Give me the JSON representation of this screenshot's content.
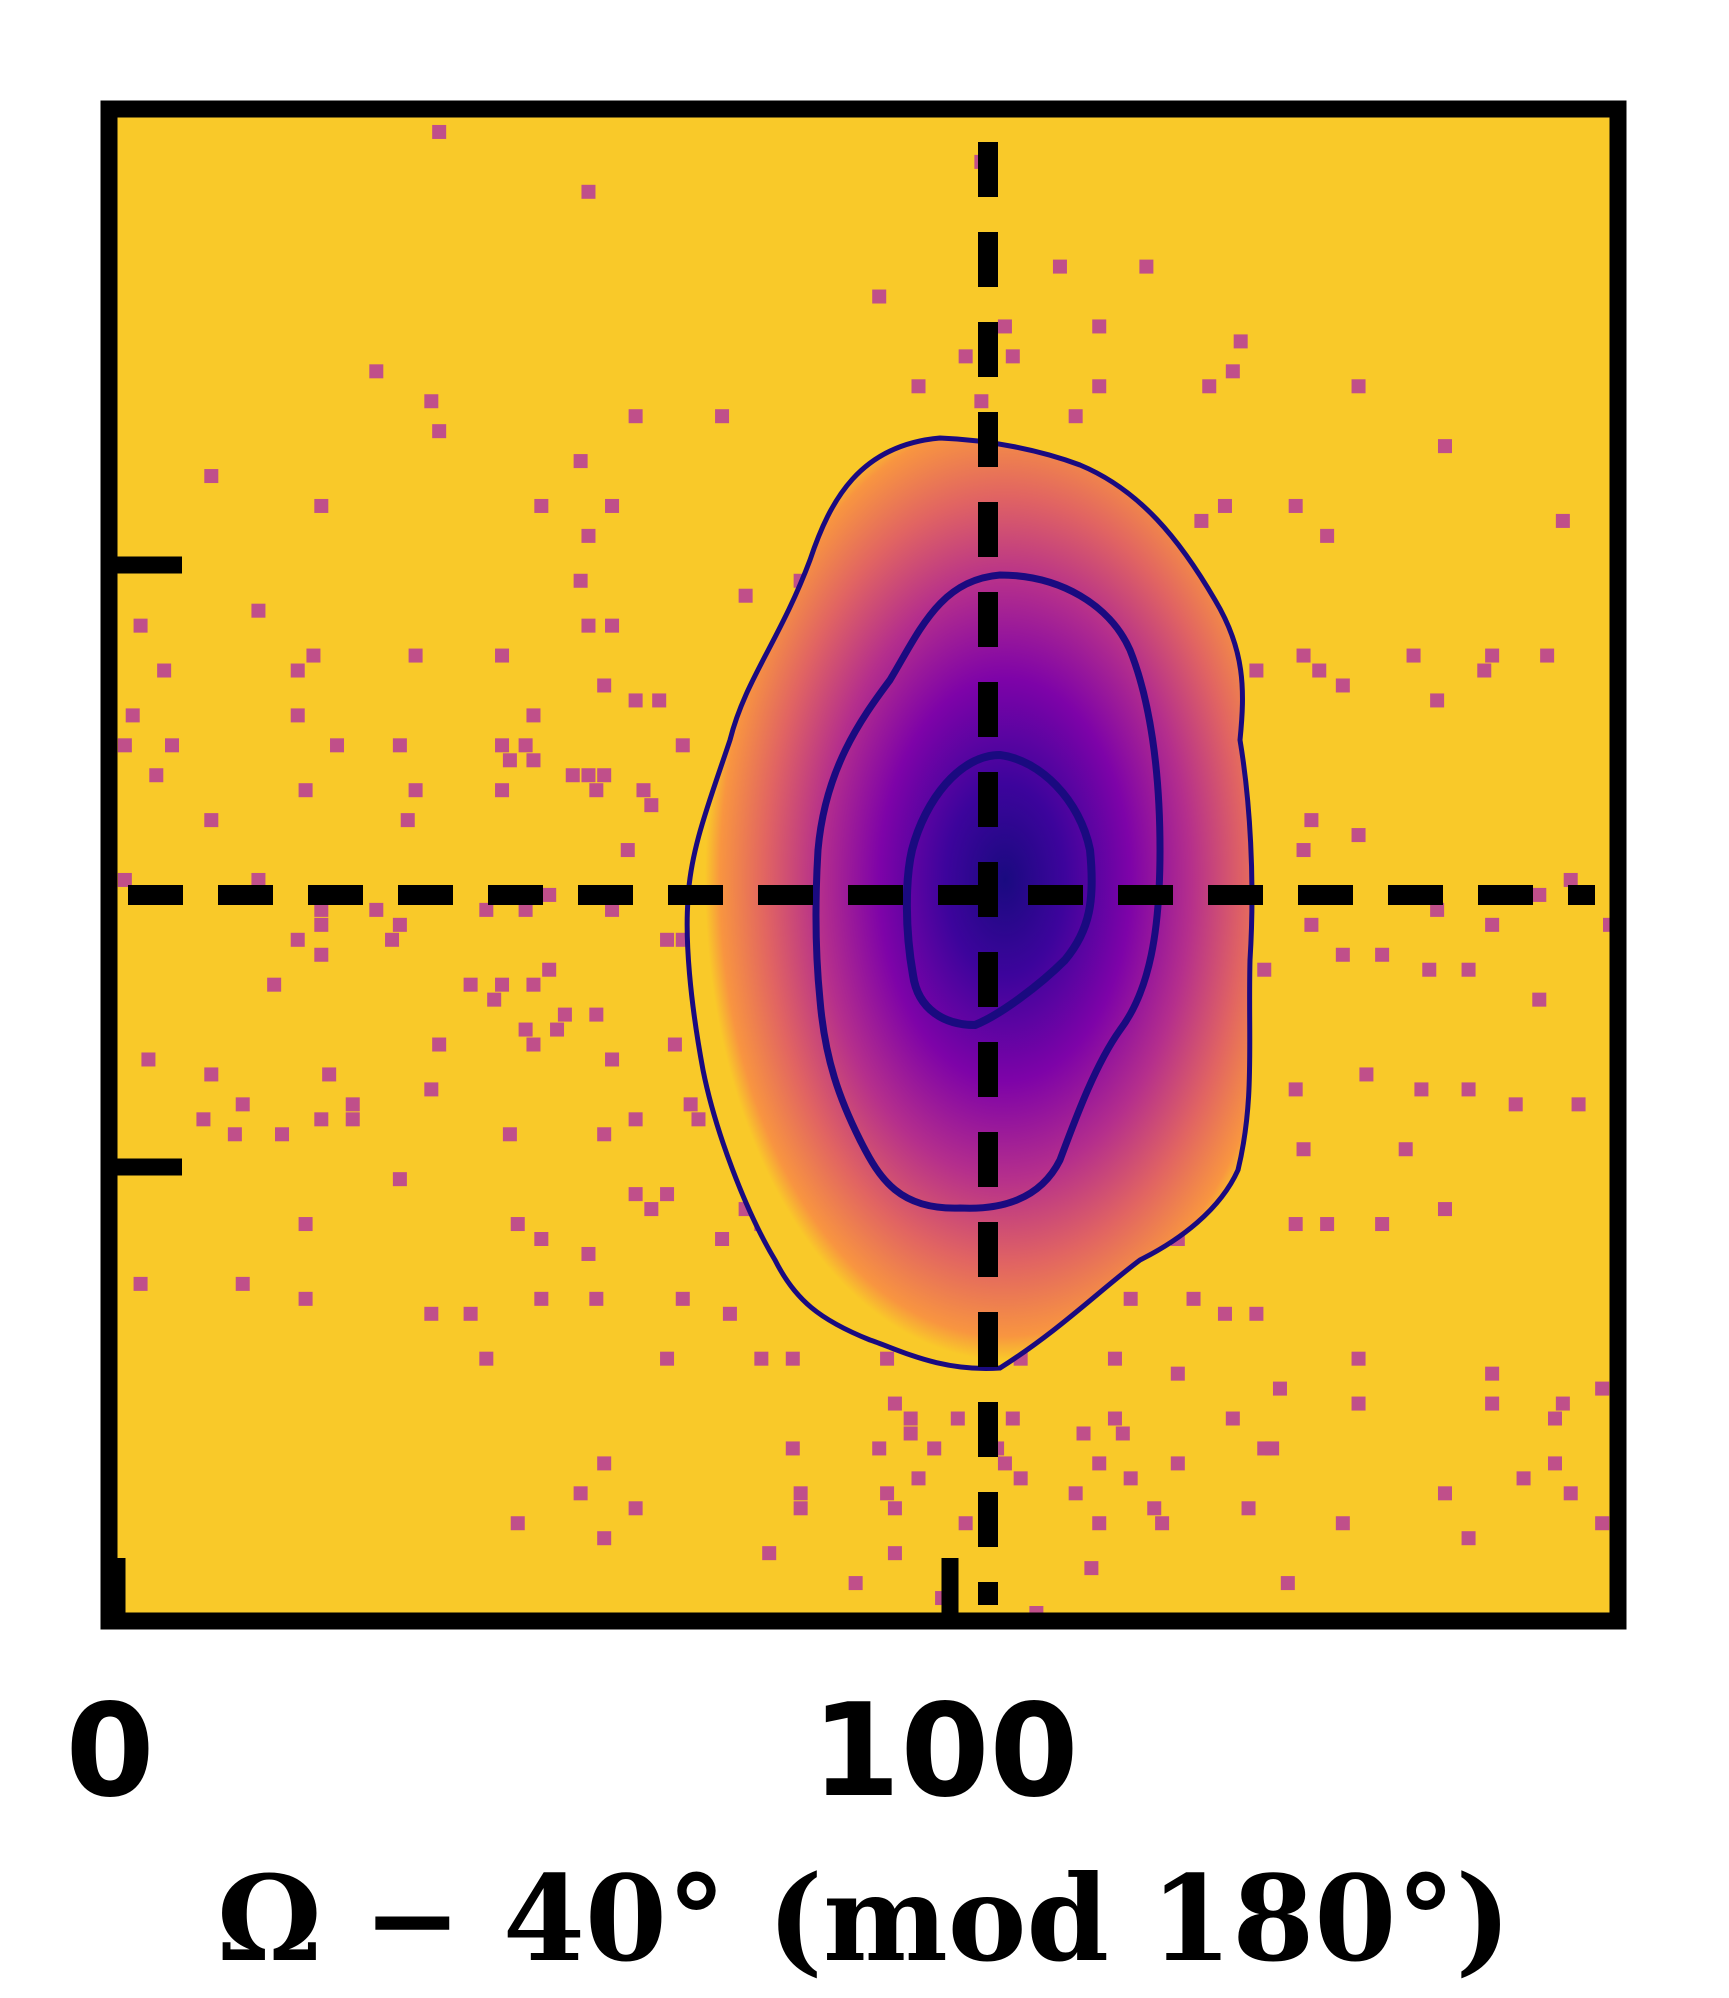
{
  "chart_data": {
    "type": "heatmap",
    "title": "",
    "xlabel": "Ω − 40°  (mod 180°)",
    "ylabel": "",
    "xlim": [
      0,
      180
    ],
    "ylim": [
      0,
      100
    ],
    "x_ticks": [
      {
        "value": 0,
        "label": "0"
      },
      {
        "value": 100,
        "label": "100"
      }
    ],
    "y_ticks": [
      {
        "value": 30,
        "label": ""
      },
      {
        "value": 70,
        "label": ""
      }
    ],
    "reference_lines": {
      "vertical_x": 104,
      "horizontal_y": 48,
      "style": "dashed"
    },
    "density": {
      "center": [
        105,
        48
      ],
      "colormap": "plasma",
      "contour_levels": 3,
      "contour_color": "#1a0a80",
      "background_color": "#f9c929"
    },
    "scatter_color": "#c04f8a",
    "scatter_points": [
      [
        41,
        99
      ],
      [
        60,
        95
      ],
      [
        110,
        97
      ],
      [
        120,
        90
      ],
      [
        97,
        88
      ],
      [
        113,
        86
      ],
      [
        131,
        90
      ],
      [
        114,
        84
      ],
      [
        125,
        86
      ],
      [
        108,
        84
      ],
      [
        143,
        85
      ],
      [
        142,
        83
      ],
      [
        33,
        83
      ],
      [
        40,
        81
      ],
      [
        41,
        79
      ],
      [
        59,
        77
      ],
      [
        66,
        80
      ],
      [
        77,
        80
      ],
      [
        102,
        82
      ],
      [
        110,
        81
      ],
      [
        122,
        80
      ],
      [
        125,
        82
      ],
      [
        139,
        82
      ],
      [
        158,
        82
      ],
      [
        169,
        78
      ],
      [
        12,
        76
      ],
      [
        26,
        74
      ],
      [
        54,
        74
      ],
      [
        60,
        72
      ],
      [
        63,
        74
      ],
      [
        138,
        73
      ],
      [
        141,
        74
      ],
      [
        150,
        74
      ],
      [
        154,
        72
      ],
      [
        184,
        73
      ],
      [
        18,
        67
      ],
      [
        3,
        66
      ],
      [
        6,
        63
      ],
      [
        23,
        63
      ],
      [
        25,
        64
      ],
      [
        38,
        64
      ],
      [
        49,
        64
      ],
      [
        59,
        69
      ],
      [
        60,
        66
      ],
      [
        63,
        66
      ],
      [
        80,
        68
      ],
      [
        88,
        67
      ],
      [
        87,
        69
      ],
      [
        2,
        60
      ],
      [
        1,
        58
      ],
      [
        7,
        58
      ],
      [
        23,
        60
      ],
      [
        28,
        58
      ],
      [
        36,
        58
      ],
      [
        52,
        58
      ],
      [
        53,
        60
      ],
      [
        62,
        62
      ],
      [
        66,
        61
      ],
      [
        69,
        61
      ],
      [
        72,
        58
      ],
      [
        82,
        61
      ],
      [
        137,
        61
      ],
      [
        145,
        63
      ],
      [
        151,
        64
      ],
      [
        153,
        63
      ],
      [
        156,
        62
      ],
      [
        165,
        64
      ],
      [
        168,
        61
      ],
      [
        174,
        63
      ],
      [
        175,
        64
      ],
      [
        182,
        64
      ],
      [
        5,
        56
      ],
      [
        24,
        55
      ],
      [
        37,
        53
      ],
      [
        38,
        55
      ],
      [
        49,
        55
      ],
      [
        50,
        57
      ],
      [
        53,
        57
      ],
      [
        58,
        56
      ],
      [
        60,
        56
      ],
      [
        62,
        56
      ],
      [
        12,
        53
      ],
      [
        49,
        58
      ],
      [
        61,
        55
      ],
      [
        67,
        55
      ],
      [
        68,
        54
      ],
      [
        65,
        51
      ],
      [
        98,
        52
      ],
      [
        130,
        55
      ],
      [
        133,
        55
      ],
      [
        138,
        53
      ],
      [
        151,
        51
      ],
      [
        152,
        53
      ],
      [
        158,
        52
      ],
      [
        1,
        49
      ],
      [
        16,
        48
      ],
      [
        18,
        49
      ],
      [
        26,
        47
      ],
      [
        23,
        45
      ],
      [
        26,
        46
      ],
      [
        33,
        47
      ],
      [
        36,
        46
      ],
      [
        47,
        47
      ],
      [
        52,
        47
      ],
      [
        55,
        48
      ],
      [
        63,
        47
      ],
      [
        70,
        45
      ],
      [
        122,
        48
      ],
      [
        134,
        47
      ],
      [
        137,
        47
      ],
      [
        152,
        46
      ],
      [
        168,
        47
      ],
      [
        175,
        46
      ],
      [
        181,
        48
      ],
      [
        185,
        49
      ],
      [
        190,
        46
      ],
      [
        20,
        42
      ],
      [
        26,
        44
      ],
      [
        35,
        45
      ],
      [
        45,
        42
      ],
      [
        49,
        42
      ],
      [
        48,
        41
      ],
      [
        53,
        42
      ],
      [
        55,
        43
      ],
      [
        57,
        40
      ],
      [
        61,
        40
      ],
      [
        72,
        45
      ],
      [
        116,
        42
      ],
      [
        127,
        41
      ],
      [
        133,
        40
      ],
      [
        146,
        43
      ],
      [
        156,
        44
      ],
      [
        161,
        44
      ],
      [
        167,
        43
      ],
      [
        172,
        43
      ],
      [
        181,
        41
      ],
      [
        4,
        37
      ],
      [
        12,
        36
      ],
      [
        16,
        34
      ],
      [
        27,
        36
      ],
      [
        30,
        34
      ],
      [
        40,
        35
      ],
      [
        41,
        38
      ],
      [
        52,
        39
      ],
      [
        53,
        38
      ],
      [
        56,
        39
      ],
      [
        63,
        37
      ],
      [
        71,
        38
      ],
      [
        78,
        38
      ],
      [
        119,
        37
      ],
      [
        125,
        37
      ],
      [
        130,
        37
      ],
      [
        138,
        37
      ],
      [
        150,
        35
      ],
      [
        159,
        36
      ],
      [
        166,
        35
      ],
      [
        172,
        35
      ],
      [
        178,
        34
      ],
      [
        186,
        34
      ],
      [
        11,
        33
      ],
      [
        15,
        32
      ],
      [
        21,
        32
      ],
      [
        26,
        33
      ],
      [
        30,
        33
      ],
      [
        50,
        32
      ],
      [
        62,
        32
      ],
      [
        66,
        33
      ],
      [
        73,
        34
      ],
      [
        74,
        33
      ],
      [
        36,
        29
      ],
      [
        66,
        28
      ],
      [
        68,
        27
      ],
      [
        70,
        28
      ],
      [
        80,
        27
      ],
      [
        84,
        29
      ],
      [
        86,
        28
      ],
      [
        126,
        29
      ],
      [
        135,
        28
      ],
      [
        139,
        30
      ],
      [
        151,
        31
      ],
      [
        164,
        31
      ],
      [
        24,
        26
      ],
      [
        51,
        26
      ],
      [
        54,
        25
      ],
      [
        60,
        24
      ],
      [
        77,
        25
      ],
      [
        82,
        26
      ],
      [
        88,
        26
      ],
      [
        122,
        26
      ],
      [
        135,
        25
      ],
      [
        150,
        26
      ],
      [
        154,
        26
      ],
      [
        161,
        26
      ],
      [
        169,
        27
      ],
      [
        3,
        22
      ],
      [
        16,
        22
      ],
      [
        24,
        21
      ],
      [
        40,
        20
      ],
      [
        45,
        20
      ],
      [
        54,
        21
      ],
      [
        61,
        21
      ],
      [
        72,
        21
      ],
      [
        78,
        20
      ],
      [
        99,
        19
      ],
      [
        115,
        19
      ],
      [
        129,
        21
      ],
      [
        137,
        21
      ],
      [
        141,
        20
      ],
      [
        145,
        20
      ],
      [
        47,
        17
      ],
      [
        70,
        17
      ],
      [
        82,
        17
      ],
      [
        86,
        17
      ],
      [
        98,
        17
      ],
      [
        115,
        17
      ],
      [
        127,
        17
      ],
      [
        135,
        16
      ],
      [
        158,
        17
      ],
      [
        175,
        16
      ],
      [
        189,
        15
      ],
      [
        191,
        20
      ],
      [
        99,
        14
      ],
      [
        101,
        13
      ],
      [
        107,
        13
      ],
      [
        114,
        13
      ],
      [
        123,
        12
      ],
      [
        127,
        13
      ],
      [
        142,
        13
      ],
      [
        148,
        15
      ],
      [
        158,
        14
      ],
      [
        175,
        14
      ],
      [
        184,
        14
      ],
      [
        86,
        11
      ],
      [
        97,
        11
      ],
      [
        101,
        12
      ],
      [
        104,
        11
      ],
      [
        112,
        11
      ],
      [
        128,
        12
      ],
      [
        147,
        11
      ],
      [
        183,
        13
      ],
      [
        62,
        10
      ],
      [
        113,
        10
      ],
      [
        115,
        9
      ],
      [
        125,
        10
      ],
      [
        129,
        9
      ],
      [
        135,
        10
      ],
      [
        146,
        11
      ],
      [
        179,
        9
      ],
      [
        183,
        10
      ],
      [
        59,
        8
      ],
      [
        87,
        8
      ],
      [
        98,
        8
      ],
      [
        102,
        9
      ],
      [
        122,
        8
      ],
      [
        132,
        7
      ],
      [
        144,
        7
      ],
      [
        169,
        8
      ],
      [
        185,
        8
      ],
      [
        51,
        6
      ],
      [
        66,
        7
      ],
      [
        87,
        7
      ],
      [
        99,
        7
      ],
      [
        108,
        6
      ],
      [
        125,
        6
      ],
      [
        133,
        6
      ],
      [
        156,
        6
      ],
      [
        189,
        6
      ],
      [
        62,
        5
      ],
      [
        83,
        4
      ],
      [
        99,
        4
      ],
      [
        124,
        3
      ],
      [
        149,
        2
      ],
      [
        172,
        5
      ],
      [
        94,
        2
      ],
      [
        105,
        1
      ],
      [
        117,
        0
      ]
    ]
  }
}
